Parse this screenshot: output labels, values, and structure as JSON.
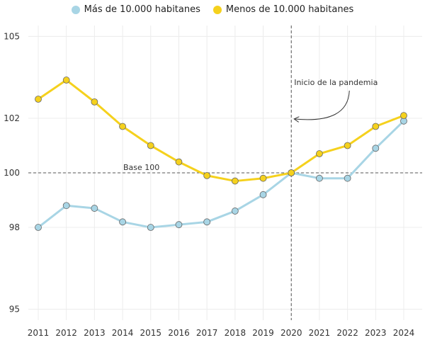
{
  "chart_data": {
    "type": "line",
    "x": [
      2011,
      2012,
      2013,
      2014,
      2015,
      2016,
      2017,
      2018,
      2019,
      2020,
      2021,
      2022,
      2023,
      2024
    ],
    "series": [
      {
        "name": "Más de 10.000 habitanes",
        "color": "#a8d5e5",
        "values": [
          98.0,
          98.8,
          98.7,
          98.2,
          98.0,
          98.1,
          98.2,
          98.6,
          99.2,
          100.0,
          99.8,
          99.8,
          100.9,
          101.9
        ]
      },
      {
        "name": "Menos de 10.000 habitanes",
        "color": "#f5d11d",
        "values": [
          102.7,
          103.4,
          102.6,
          101.7,
          101.0,
          100.4,
          99.9,
          99.7,
          99.8,
          100.0,
          100.7,
          101.0,
          101.7,
          102.1
        ]
      }
    ],
    "y_ticks": [
      105,
      102,
      100,
      98,
      95
    ],
    "ylim": [
      94.6,
      105.4
    ],
    "grid": true,
    "legend_position": "top-center",
    "reference_line": {
      "value": 100,
      "label": "Base 100"
    },
    "annotation": {
      "x": 2020,
      "label": "Inicio de la pandemia"
    }
  }
}
